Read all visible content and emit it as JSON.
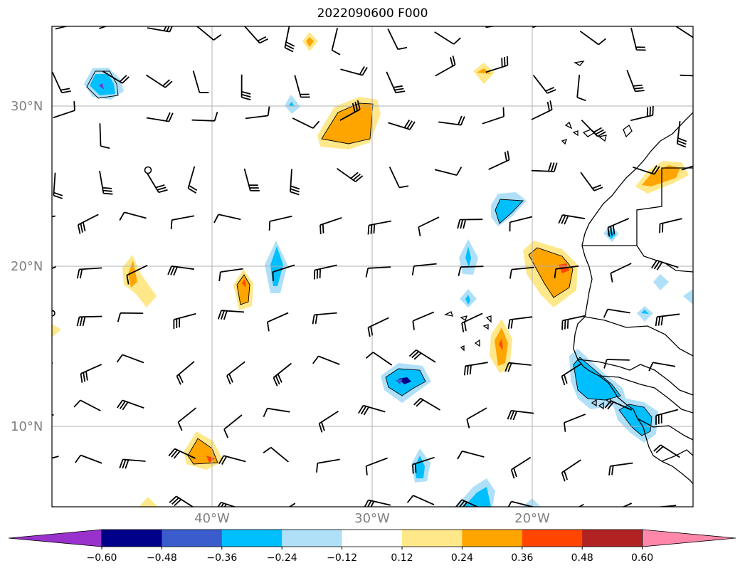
{
  "title": "2022090600 F000",
  "map": {
    "lat_labels": [
      "30°N",
      "20°N",
      "10°N"
    ],
    "lon_labels": [
      "40°W",
      "30°W",
      "20°W"
    ],
    "gridlines": true
  },
  "colorbar": {
    "ticks": [
      "−0.60",
      "−0.48",
      "−0.36",
      "−0.24",
      "−0.12",
      "0.12",
      "0.24",
      "0.36",
      "0.48",
      "0.60"
    ],
    "colors": [
      "#9932cc",
      "#00008b",
      "#3a5ccc",
      "#00bfff",
      "#b0e0f8",
      "#ffffff",
      "#ffe88a",
      "#ffa500",
      "#ff4500",
      "#b22222",
      "#ff88aa"
    ]
  },
  "colors": {
    "pos_light": "#ffe88a",
    "pos_mid": "#ffa500",
    "pos_strong": "#ff4500",
    "neg_light": "#b0e0f8",
    "neg_mid": "#00bfff",
    "neg_strong": "#6a3bd0",
    "gridline": "#b0b0b0"
  }
}
